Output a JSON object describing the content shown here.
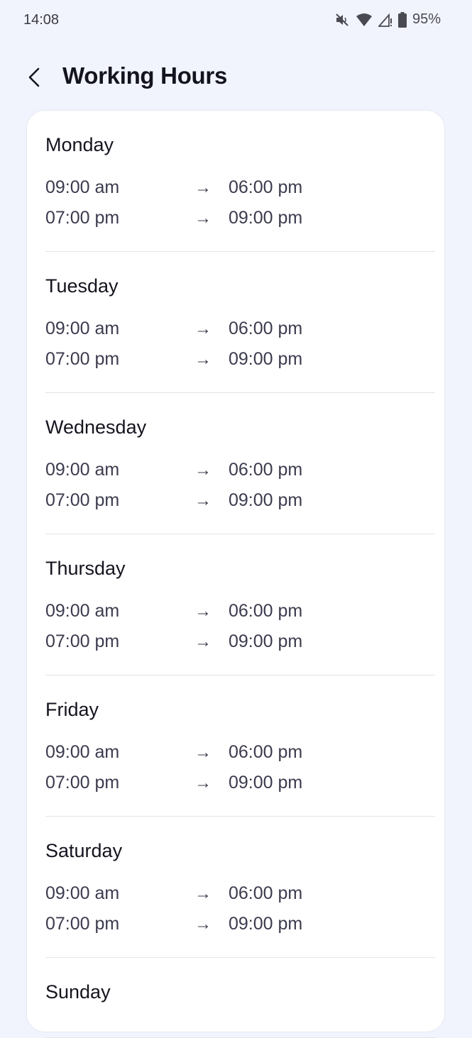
{
  "status_bar": {
    "time": "14:08",
    "battery": "95%",
    "icons": [
      "mute-icon",
      "wifi-icon",
      "signal-icon",
      "battery-icon"
    ]
  },
  "header": {
    "title": "Working Hours",
    "back_icon": "chevron-left-icon"
  },
  "days": [
    {
      "name": "Monday",
      "slots": [
        {
          "start": "09:00 am",
          "end": "06:00 pm"
        },
        {
          "start": "07:00 pm",
          "end": "09:00 pm"
        }
      ]
    },
    {
      "name": "Tuesday",
      "slots": [
        {
          "start": "09:00 am",
          "end": "06:00 pm"
        },
        {
          "start": "07:00 pm",
          "end": "09:00 pm"
        }
      ]
    },
    {
      "name": "Wednesday",
      "slots": [
        {
          "start": "09:00 am",
          "end": "06:00 pm"
        },
        {
          "start": "07:00 pm",
          "end": "09:00 pm"
        }
      ]
    },
    {
      "name": "Thursday",
      "slots": [
        {
          "start": "09:00 am",
          "end": "06:00 pm"
        },
        {
          "start": "07:00 pm",
          "end": "09:00 pm"
        }
      ]
    },
    {
      "name": "Friday",
      "slots": [
        {
          "start": "09:00 am",
          "end": "06:00 pm"
        },
        {
          "start": "07:00 pm",
          "end": "09:00 pm"
        }
      ]
    },
    {
      "name": "Saturday",
      "slots": [
        {
          "start": "09:00 am",
          "end": "06:00 pm"
        },
        {
          "start": "07:00 pm",
          "end": "09:00 pm"
        }
      ]
    },
    {
      "name": "Sunday",
      "slots": []
    }
  ],
  "arrow": "→"
}
